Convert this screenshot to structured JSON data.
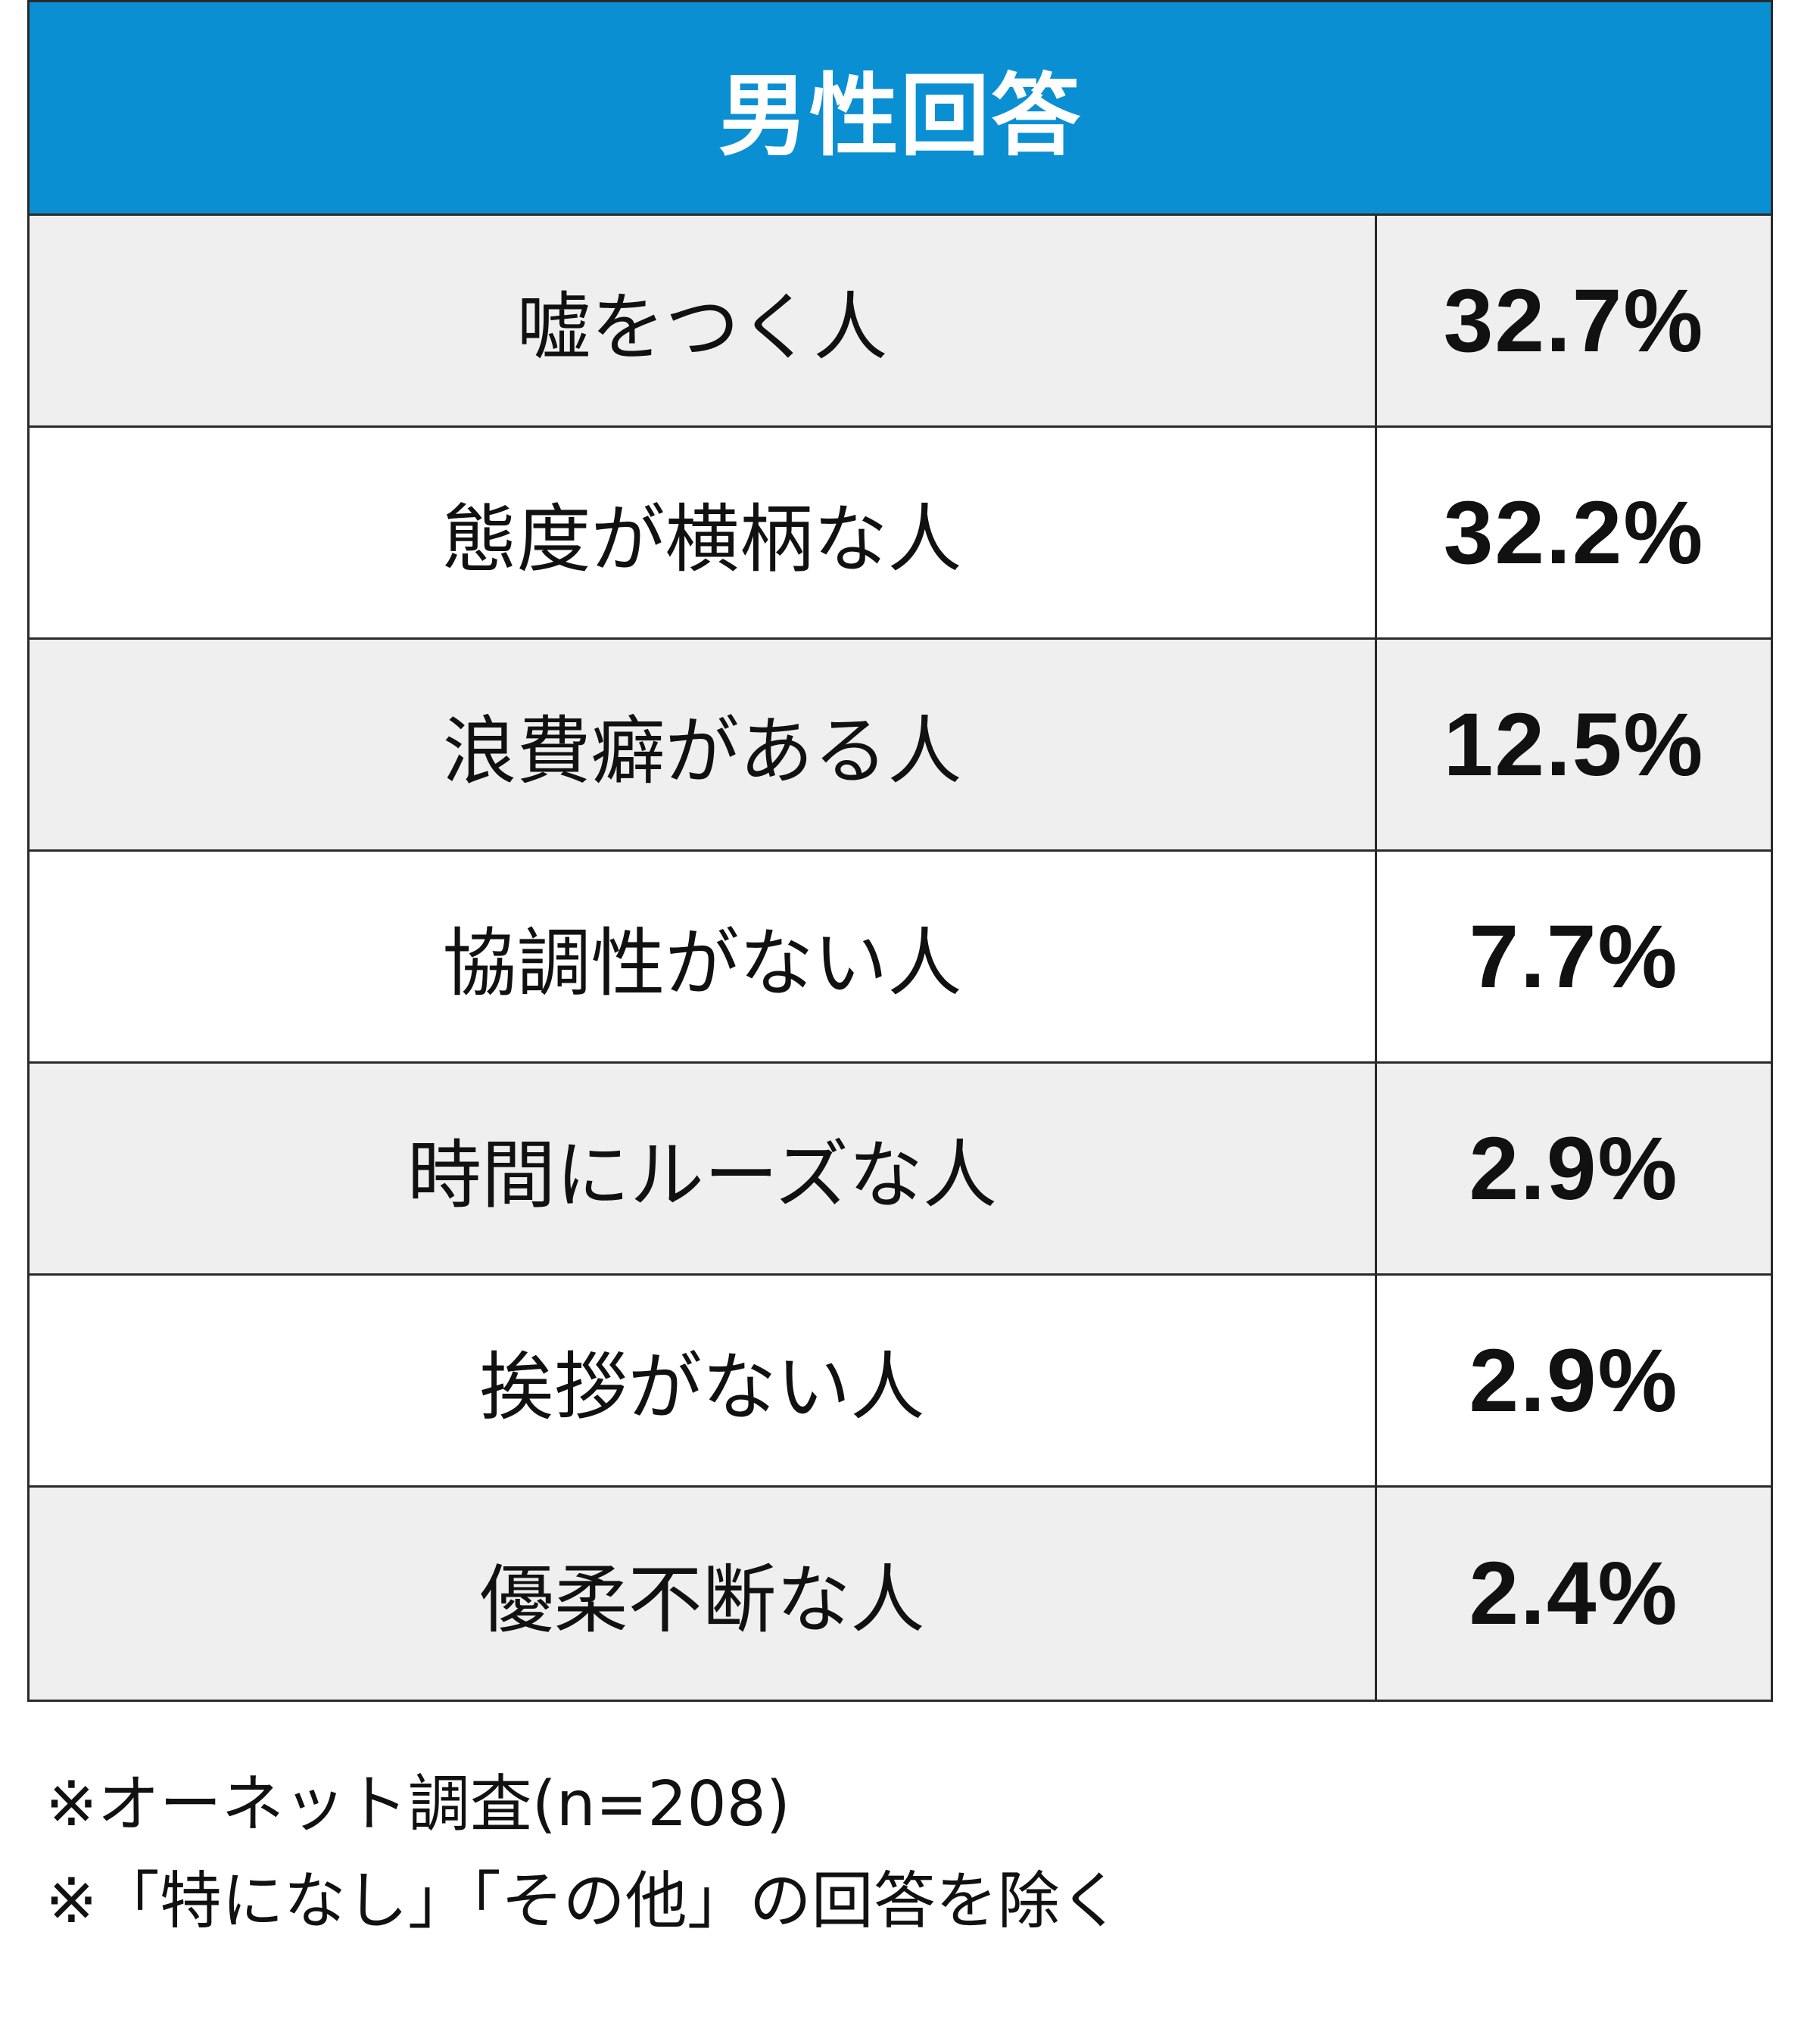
{
  "chart_data": {
    "type": "table",
    "title": "男性回答",
    "rows": [
      {
        "label": "嘘をつく人",
        "value": "32.7%",
        "percent": 32.7
      },
      {
        "label": "態度が横柄な人",
        "value": "32.2%",
        "percent": 32.2
      },
      {
        "label": "浪費癖がある人",
        "value": "12.5%",
        "percent": 12.5
      },
      {
        "label": "協調性がない人",
        "value": "7.7%",
        "percent": 7.7
      },
      {
        "label": "時間にルーズな人",
        "value": "2.9%",
        "percent": 2.9
      },
      {
        "label": "挨拶がない人",
        "value": "2.9%",
        "percent": 2.9
      },
      {
        "label": "優柔不断な人",
        "value": "2.4%",
        "percent": 2.4
      }
    ]
  },
  "notes": [
    "※オーネット調査(n=208)",
    "※「特になし」「その他」の回答を除く"
  ],
  "colors": {
    "header_bg": "#0b8fd3",
    "header_text": "#ffffff",
    "row_shaded": "#efefef",
    "row_plain": "#ffffff",
    "border": "#2a2a2a"
  }
}
